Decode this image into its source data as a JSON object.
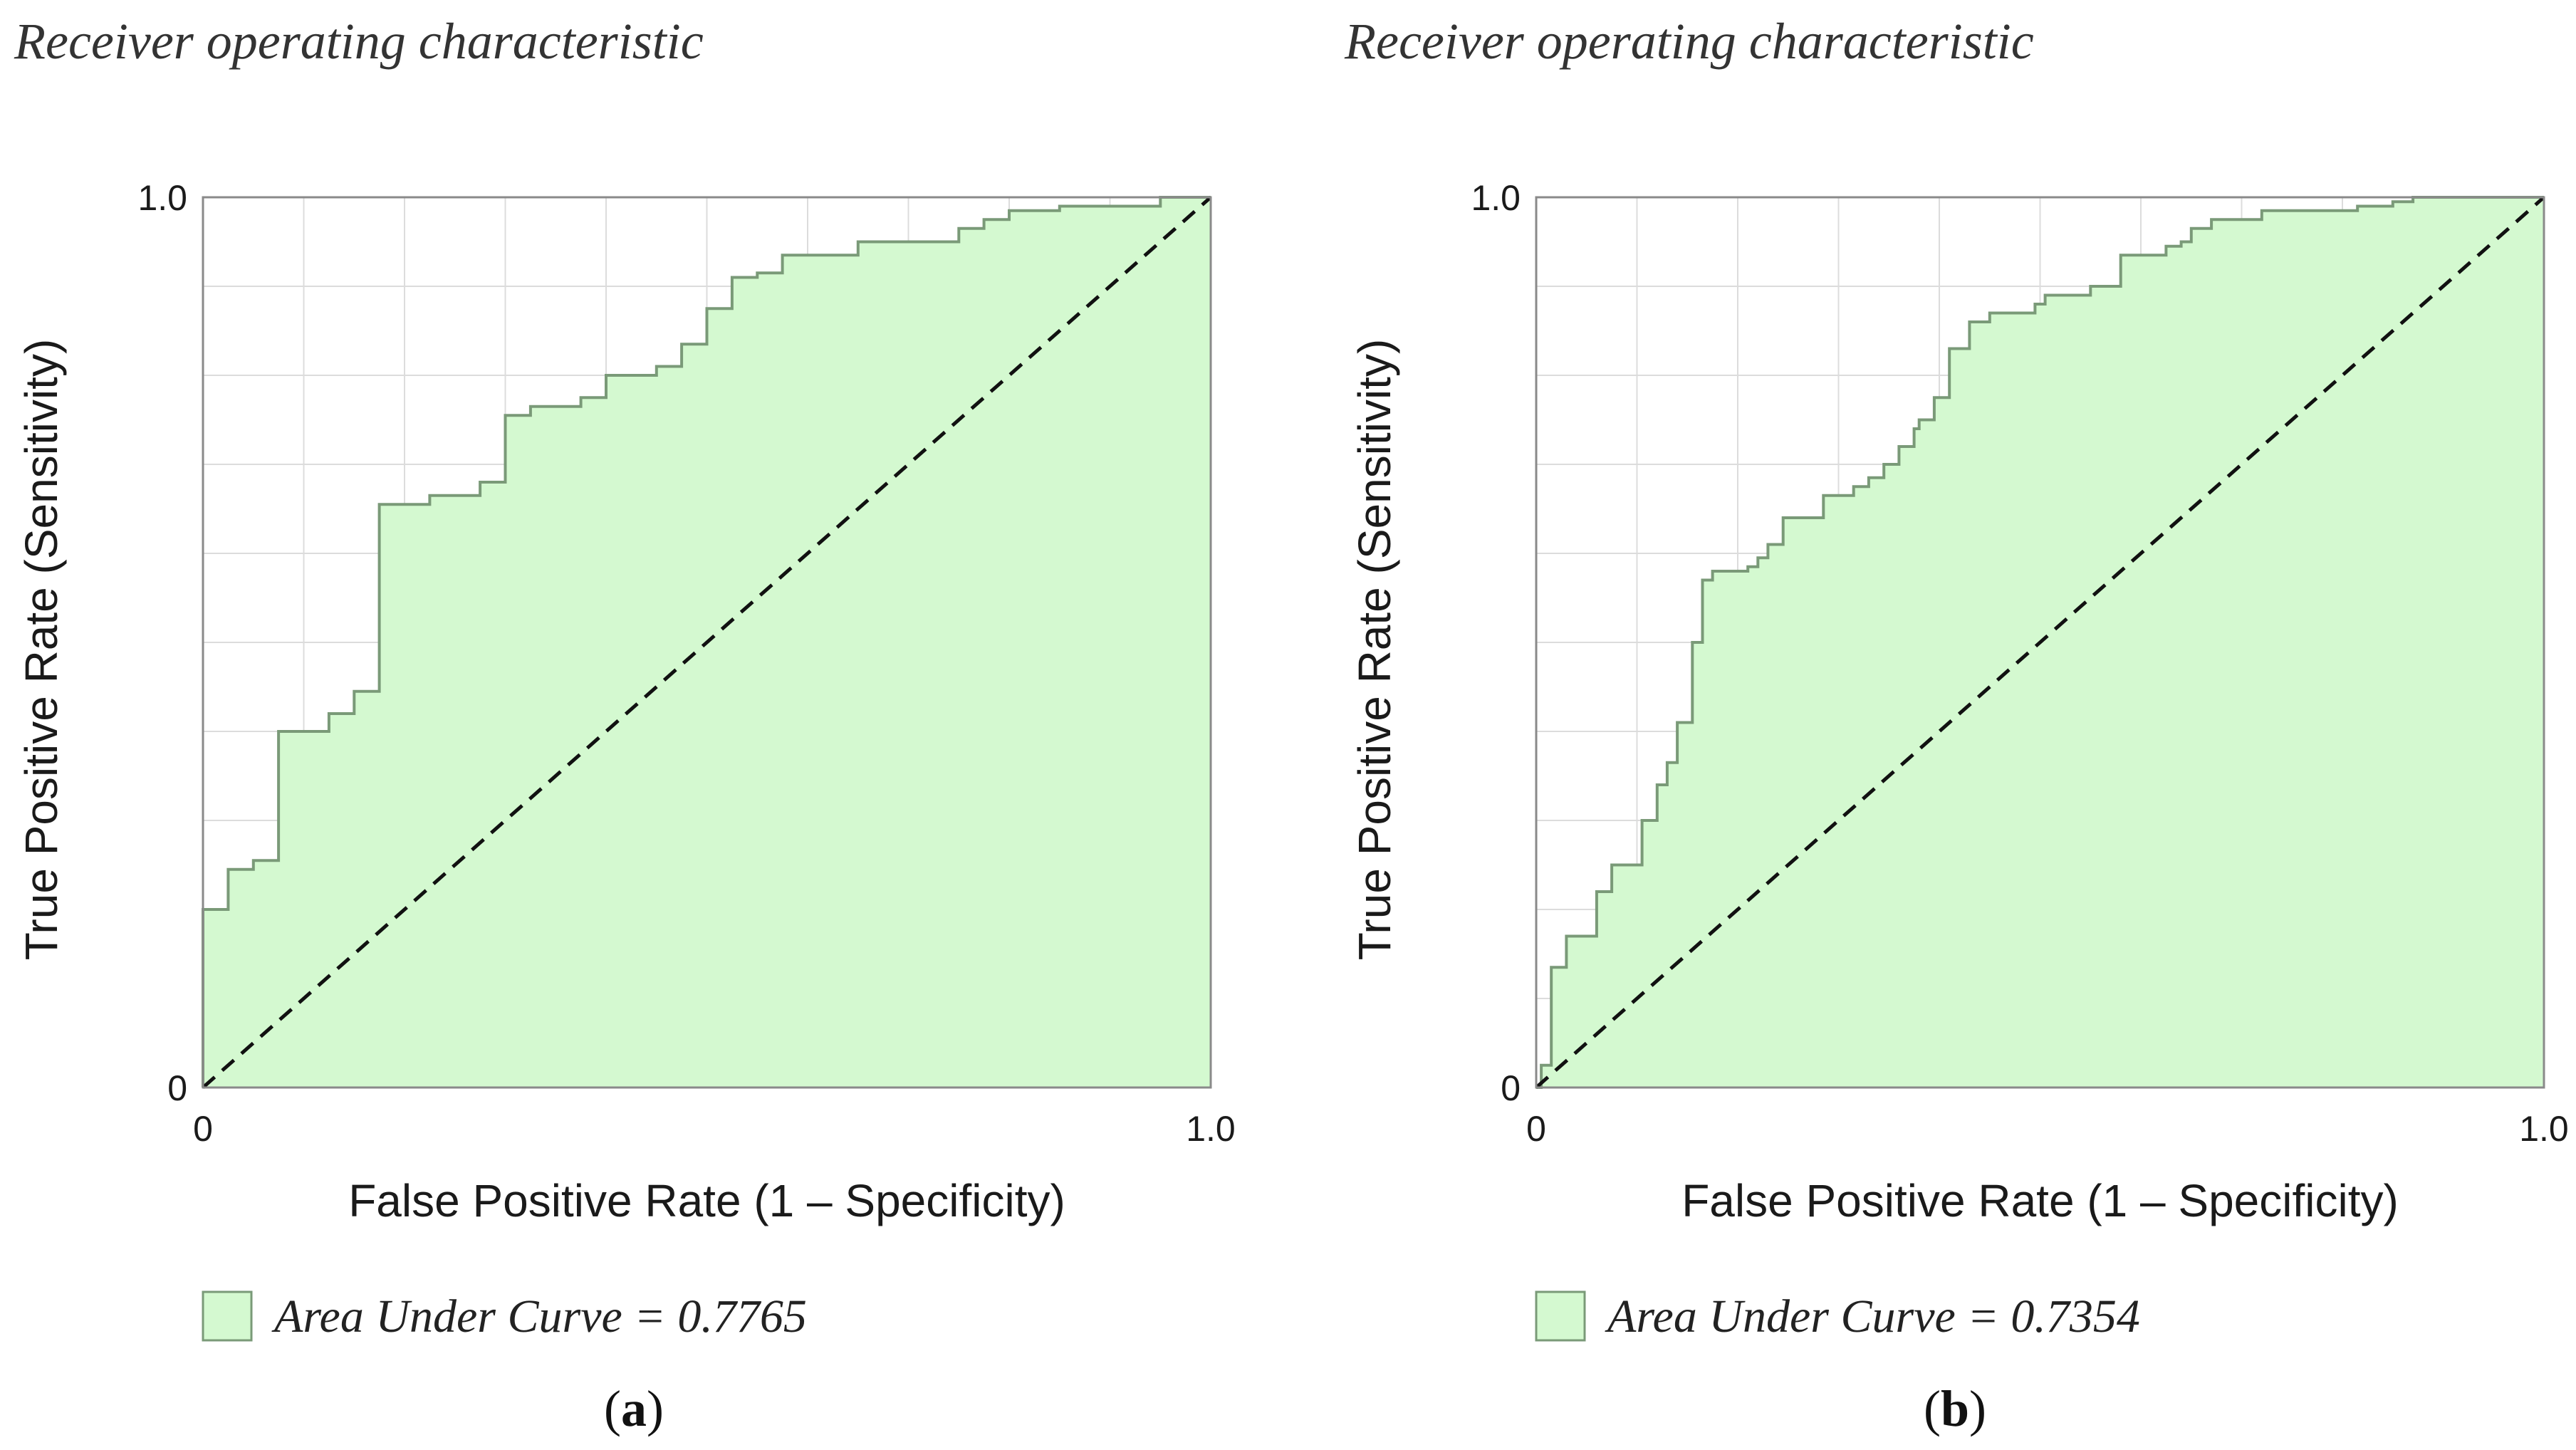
{
  "chart_data": [
    {
      "panel": "a",
      "type": "area",
      "title": "Receiver operating characteristic",
      "xlabel": "False Positive Rate (1 – Specificity)",
      "ylabel": "True Positive Rate (Sensitivity)",
      "xlim": [
        0,
        1.0
      ],
      "ylim": [
        0,
        1.0
      ],
      "x_ticks": [
        "0",
        "1.0"
      ],
      "y_ticks": [
        "0",
        "1.0"
      ],
      "grid": true,
      "legend": "Area Under Curve = 0.7765",
      "caption_open": "(",
      "caption_letter": "a",
      "caption_close": ")",
      "fill_color": "#d4f9d0",
      "line_color": "#7a9a78",
      "series": [
        {
          "name": "ROC",
          "x": [
            0,
            0,
            0.025,
            0.025,
            0.05,
            0.05,
            0.075,
            0.075,
            0.125,
            0.125,
            0.15,
            0.15,
            0.175,
            0.175,
            0.225,
            0.225,
            0.275,
            0.275,
            0.3,
            0.3,
            0.325,
            0.325,
            0.375,
            0.375,
            0.4,
            0.4,
            0.45,
            0.45,
            0.475,
            0.475,
            0.5,
            0.5,
            0.525,
            0.525,
            0.55,
            0.55,
            0.575,
            0.575,
            0.65,
            0.65,
            0.75,
            0.75,
            0.775,
            0.775,
            0.8,
            0.8,
            0.85,
            0.85,
            0.95,
            0.95,
            1.0
          ],
          "y": [
            0,
            0.2,
            0.2,
            0.245,
            0.245,
            0.255,
            0.255,
            0.4,
            0.4,
            0.42,
            0.42,
            0.445,
            0.445,
            0.655,
            0.655,
            0.665,
            0.665,
            0.68,
            0.68,
            0.755,
            0.755,
            0.765,
            0.765,
            0.775,
            0.775,
            0.8,
            0.8,
            0.81,
            0.81,
            0.835,
            0.835,
            0.875,
            0.875,
            0.91,
            0.91,
            0.915,
            0.915,
            0.935,
            0.935,
            0.95,
            0.95,
            0.965,
            0.965,
            0.975,
            0.975,
            0.985,
            0.985,
            0.99,
            0.99,
            1.0,
            1.0
          ]
        },
        {
          "name": "Chance",
          "style": "dashed",
          "x": [
            0,
            1.0
          ],
          "y": [
            0,
            1.0
          ]
        }
      ]
    },
    {
      "panel": "b",
      "type": "area",
      "title": "Receiver operating characteristic",
      "xlabel": "False Positive Rate (1 – Specificity)",
      "ylabel": "True Positive Rate (Sensitivity)",
      "xlim": [
        0,
        1.0
      ],
      "ylim": [
        0,
        1.0
      ],
      "x_ticks": [
        "0",
        "1.0"
      ],
      "y_ticks": [
        "0",
        "1.0"
      ],
      "grid": true,
      "legend": "Area Under Curve = 0.7354",
      "caption_open": "(",
      "caption_letter": "b",
      "caption_close": ")",
      "fill_color": "#d4f9d0",
      "line_color": "#7a9a78",
      "series": [
        {
          "name": "ROC",
          "x": [
            0,
            0.005,
            0.005,
            0.015,
            0.015,
            0.03,
            0.03,
            0.06,
            0.06,
            0.075,
            0.075,
            0.105,
            0.105,
            0.12,
            0.12,
            0.13,
            0.13,
            0.14,
            0.14,
            0.155,
            0.155,
            0.165,
            0.165,
            0.175,
            0.175,
            0.21,
            0.21,
            0.22,
            0.22,
            0.23,
            0.23,
            0.245,
            0.245,
            0.285,
            0.285,
            0.315,
            0.315,
            0.33,
            0.33,
            0.345,
            0.345,
            0.36,
            0.36,
            0.375,
            0.375,
            0.38,
            0.38,
            0.395,
            0.395,
            0.41,
            0.41,
            0.43,
            0.43,
            0.45,
            0.45,
            0.495,
            0.495,
            0.505,
            0.505,
            0.55,
            0.55,
            0.58,
            0.58,
            0.625,
            0.625,
            0.64,
            0.64,
            0.65,
            0.65,
            0.67,
            0.67,
            0.72,
            0.72,
            0.815,
            0.815,
            0.85,
            0.85,
            0.87,
            0.87,
            0.875,
            0.875,
            0.95,
            0.95,
            0.975,
            0.975,
            1.0
          ],
          "y": [
            0,
            0,
            0.025,
            0.025,
            0.135,
            0.135,
            0.17,
            0.17,
            0.22,
            0.22,
            0.25,
            0.25,
            0.3,
            0.3,
            0.34,
            0.34,
            0.365,
            0.365,
            0.41,
            0.41,
            0.5,
            0.5,
            0.57,
            0.57,
            0.58,
            0.58,
            0.585,
            0.585,
            0.595,
            0.595,
            0.61,
            0.61,
            0.64,
            0.64,
            0.665,
            0.665,
            0.675,
            0.675,
            0.685,
            0.685,
            0.7,
            0.7,
            0.72,
            0.72,
            0.74,
            0.74,
            0.75,
            0.75,
            0.775,
            0.775,
            0.83,
            0.83,
            0.86,
            0.86,
            0.87,
            0.87,
            0.88,
            0.88,
            0.89,
            0.89,
            0.9,
            0.9,
            0.935,
            0.935,
            0.945,
            0.945,
            0.95,
            0.95,
            0.965,
            0.965,
            0.975,
            0.975,
            0.985,
            0.985,
            0.99,
            0.99,
            0.995,
            0.995,
            1.0,
            1.0,
            1.0,
            1.0,
            1.0,
            1.0,
            1.0,
            1.0
          ]
        },
        {
          "name": "Chance",
          "style": "dashed",
          "x": [
            0,
            1.0
          ],
          "y": [
            0,
            1.0
          ]
        }
      ]
    }
  ]
}
